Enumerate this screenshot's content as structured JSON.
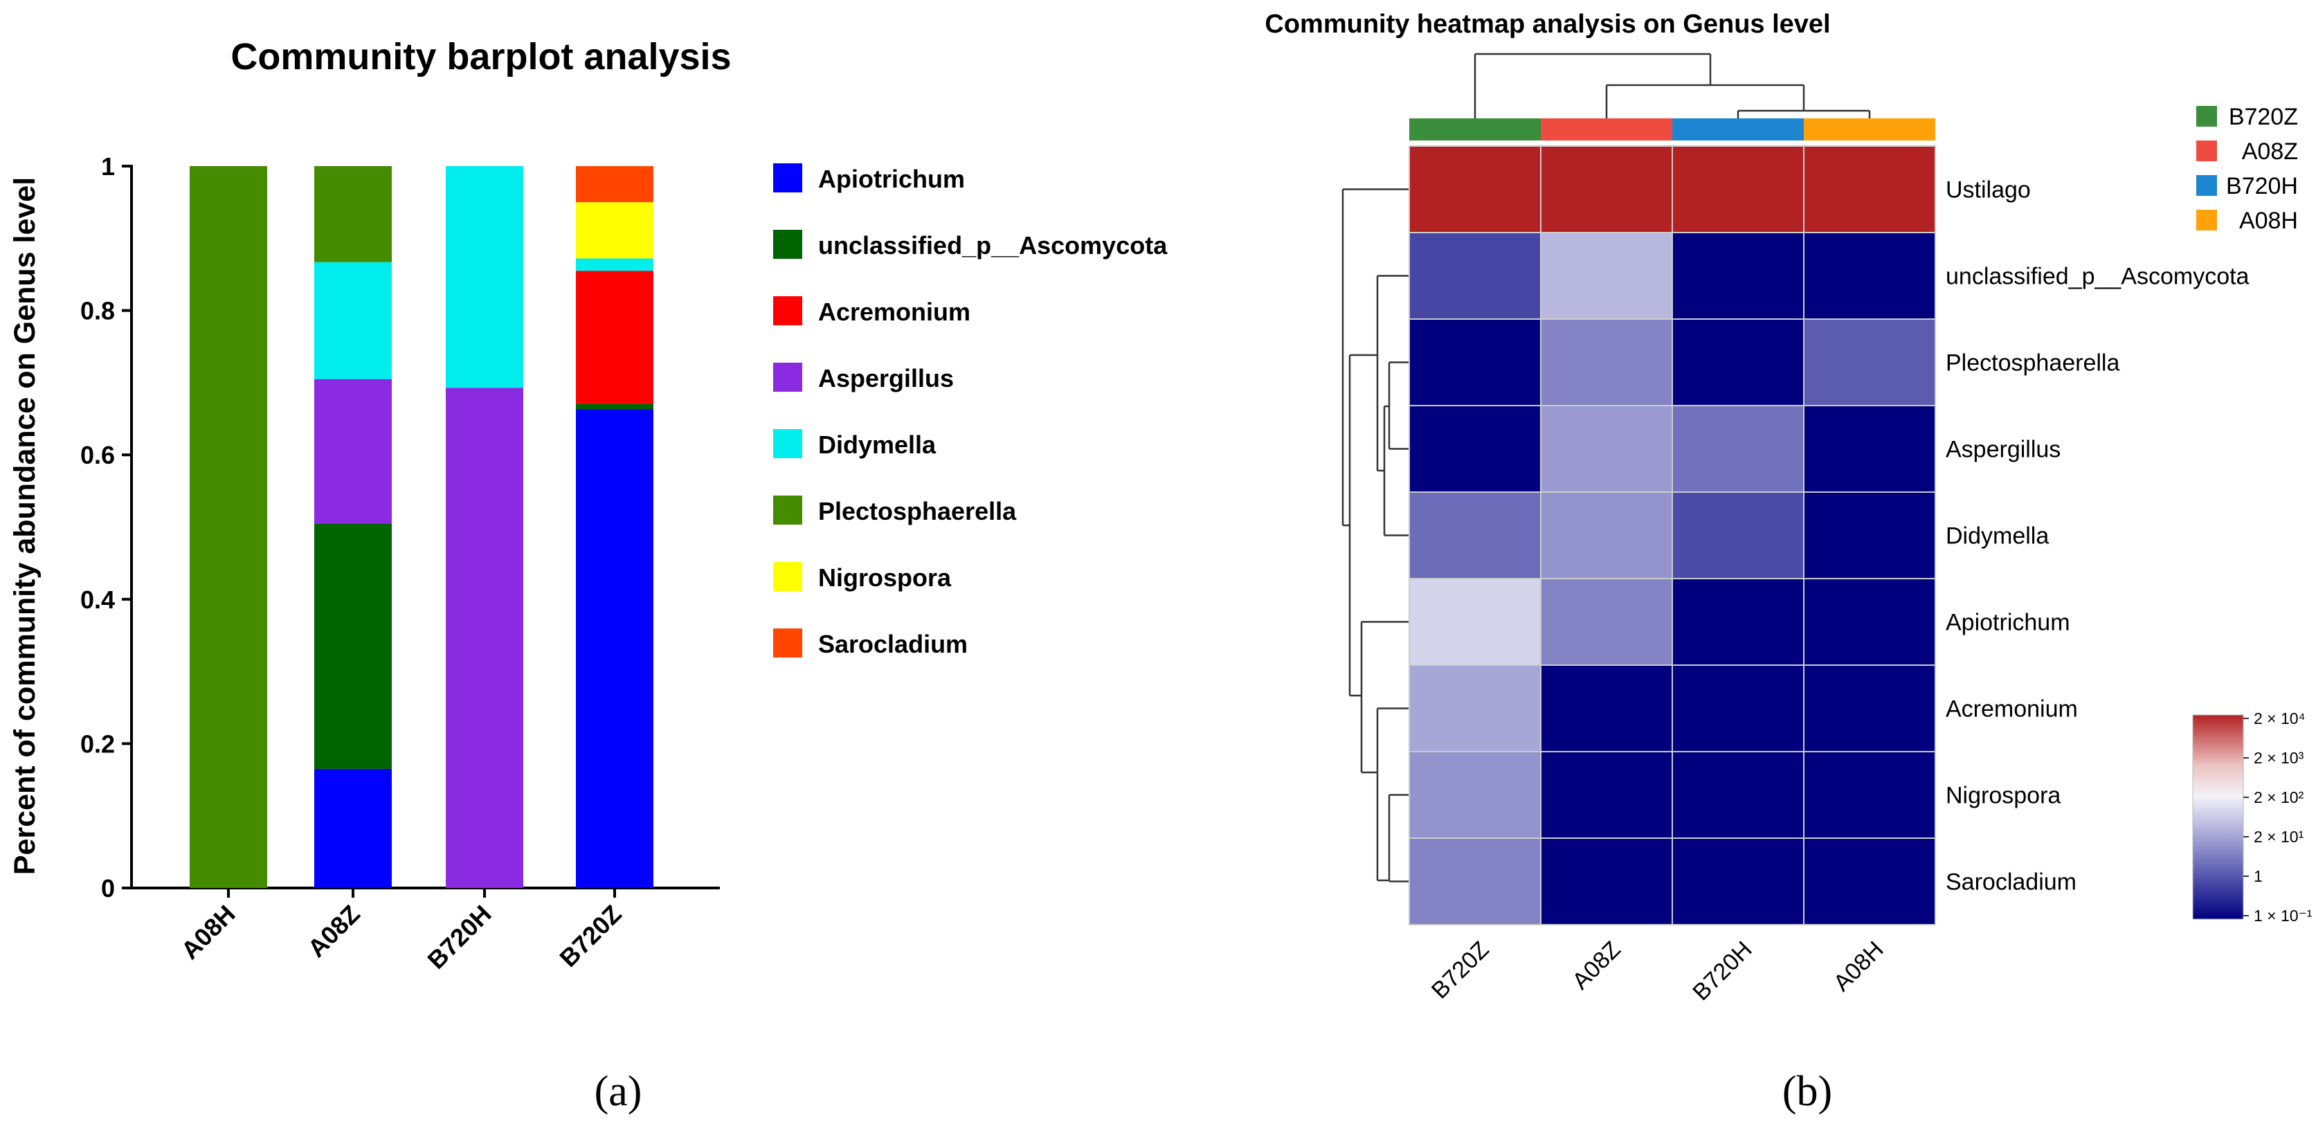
{
  "chart_data": [
    {
      "type": "bar",
      "stacked": true,
      "title": "Community barplot analysis",
      "xlabel": "",
      "ylabel": "Percent of community abundance on Genus level",
      "ylim": [
        0,
        1
      ],
      "yticks": [
        "0",
        "0.2",
        "0.4",
        "0.6",
        "0.8",
        "1"
      ],
      "categories": [
        "A08H",
        "A08Z",
        "B720H",
        "B720Z"
      ],
      "series": [
        {
          "name": "Apiotrichum",
          "color": "#0000ff",
          "values": [
            0,
            0.165,
            0,
            0.663
          ]
        },
        {
          "name": "unclassified_p__Ascomycota",
          "color": "#006400",
          "values": [
            0,
            0.34,
            0,
            0.008
          ]
        },
        {
          "name": "Acremonium",
          "color": "#ff0000",
          "values": [
            0,
            0,
            0,
            0.184
          ]
        },
        {
          "name": "Aspergillus",
          "color": "#8a2be2",
          "values": [
            0,
            0.2,
            0.693,
            0
          ]
        },
        {
          "name": "Didymella",
          "color": "#00eeee",
          "values": [
            0,
            0.162,
            0.307,
            0.017
          ]
        },
        {
          "name": "Plectosphaerella",
          "color": "#458b00",
          "values": [
            1.0,
            0.133,
            0,
            0
          ]
        },
        {
          "name": "Nigrospora",
          "color": "#ffff00",
          "values": [
            0,
            0,
            0,
            0.078
          ]
        },
        {
          "name": "Sarocladium",
          "color": "#ff4500",
          "values": [
            0,
            0,
            0,
            0.05
          ]
        }
      ],
      "panel_label": "(a)"
    },
    {
      "type": "heatmap",
      "title": "Community heatmap analysis on Genus level",
      "columns": [
        "B720Z",
        "A08Z",
        "B720H",
        "A08H"
      ],
      "column_colors": [
        "#3b8e3b",
        "#f04b41",
        "#1c87d0",
        "#ffa20a"
      ],
      "rows": [
        "Ustilago",
        "unclassified_p__Ascomycota",
        "Plectosphaerella",
        "Aspergillus",
        "Didymella",
        "Apiotrichum",
        "Acremonium",
        "Nigrospora",
        "Sarocladium"
      ],
      "values": [
        [
          20000,
          20000,
          20000,
          20000
        ],
        [
          0.8,
          25,
          0.1,
          0.1
        ],
        [
          0.1,
          5,
          0.1,
          1.5
        ],
        [
          0.1,
          10,
          3,
          0.1
        ],
        [
          2.5,
          8,
          0.9,
          0.1
        ],
        [
          60,
          5,
          0.1,
          0.1
        ],
        [
          15,
          0.1,
          0.1,
          0.1
        ],
        [
          8,
          0.1,
          0.1,
          0.1
        ],
        [
          5,
          0.1,
          0.1,
          0.1
        ]
      ],
      "colorbar_ticks": [
        "2 × 10⁴",
        "2 × 10³",
        "2 × 10²",
        "2 × 10¹",
        "1",
        "1 × 10⁻¹"
      ],
      "legend": [
        "B720Z",
        "A08Z",
        "B720H",
        "A08H"
      ],
      "panel_label": "(b)"
    }
  ]
}
